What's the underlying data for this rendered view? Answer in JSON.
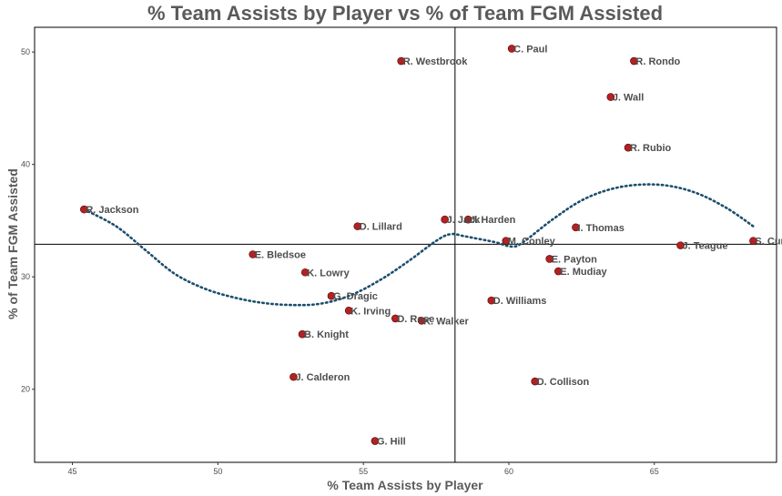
{
  "chart_data": {
    "type": "scatter",
    "title": "% Team Assists by Player vs % of Team FGM Assisted",
    "xlabel": "% Team Assists by Player",
    "ylabel": "% of Team FGM Assisted",
    "xlim": [
      43.7,
      69.2
    ],
    "ylim": [
      13.5,
      52.2
    ],
    "x_ticks": [
      45,
      50,
      55,
      60,
      65
    ],
    "y_ticks": [
      20,
      30,
      40,
      50
    ],
    "reference_lines": {
      "vline": 58.15,
      "hline": 32.9
    },
    "point_color": "#b22222",
    "trend_color": "#1a4e6e",
    "grid": false,
    "points": [
      {
        "label": "C. Paul",
        "x": 60.1,
        "y": 50.3
      },
      {
        "label": "R. Westbrook",
        "x": 56.3,
        "y": 49.2
      },
      {
        "label": "R. Rondo",
        "x": 64.3,
        "y": 49.2
      },
      {
        "label": "J. Wall",
        "x": 63.5,
        "y": 46.0
      },
      {
        "label": "R. Rubio",
        "x": 64.1,
        "y": 41.5
      },
      {
        "label": "R. Jackson",
        "x": 45.4,
        "y": 36.0
      },
      {
        "label": "D. Lillard",
        "x": 54.8,
        "y": 34.5
      },
      {
        "label": "J. Jack",
        "x": 57.8,
        "y": 35.1
      },
      {
        "label": "J. Harden",
        "x": 58.6,
        "y": 35.1
      },
      {
        "label": "I. Thomas",
        "x": 62.3,
        "y": 34.4
      },
      {
        "label": "M. Conley",
        "x": 59.9,
        "y": 33.2
      },
      {
        "label": "J. Teague",
        "x": 65.9,
        "y": 32.8
      },
      {
        "label": "S. Curr",
        "x": 68.4,
        "y": 33.2
      },
      {
        "label": "E. Bledsoe",
        "x": 51.2,
        "y": 32.0
      },
      {
        "label": "E. Payton",
        "x": 61.4,
        "y": 31.6
      },
      {
        "label": "E. Mudiay",
        "x": 61.7,
        "y": 30.5
      },
      {
        "label": "K. Lowry",
        "x": 53.0,
        "y": 30.4
      },
      {
        "label": "G. Dragic",
        "x": 53.9,
        "y": 28.3
      },
      {
        "label": "D. Williams",
        "x": 59.4,
        "y": 27.9
      },
      {
        "label": "K. Irving",
        "x": 54.5,
        "y": 27.0
      },
      {
        "label": "D. Rose",
        "x": 56.1,
        "y": 26.3
      },
      {
        "label": "K. Walker",
        "x": 57.0,
        "y": 26.1
      },
      {
        "label": "B. Knight",
        "x": 52.9,
        "y": 24.9
      },
      {
        "label": "J. Calderon",
        "x": 52.6,
        "y": 21.1
      },
      {
        "label": "D. Collison",
        "x": 60.9,
        "y": 20.7
      },
      {
        "label": "G. Hill",
        "x": 55.4,
        "y": 15.4
      }
    ],
    "trend": {
      "x": [
        45.4,
        46.5,
        47.5,
        48.5,
        49.5,
        50.5,
        51.5,
        52.5,
        53.5,
        54.5,
        55.5,
        56.5,
        57.5,
        58.0,
        58.5,
        59.5,
        60.1,
        60.5,
        61.5,
        62.5,
        63.5,
        64.5,
        65.5,
        66.5,
        67.5,
        68.4
      ],
      "y": [
        36.0,
        34.5,
        32.4,
        30.3,
        29.0,
        28.2,
        27.7,
        27.5,
        27.6,
        28.3,
        29.6,
        31.3,
        33.2,
        33.8,
        33.6,
        33.1,
        32.7,
        33.1,
        35.1,
        36.8,
        37.8,
        38.2,
        38.1,
        37.4,
        36.1,
        34.5
      ]
    }
  }
}
